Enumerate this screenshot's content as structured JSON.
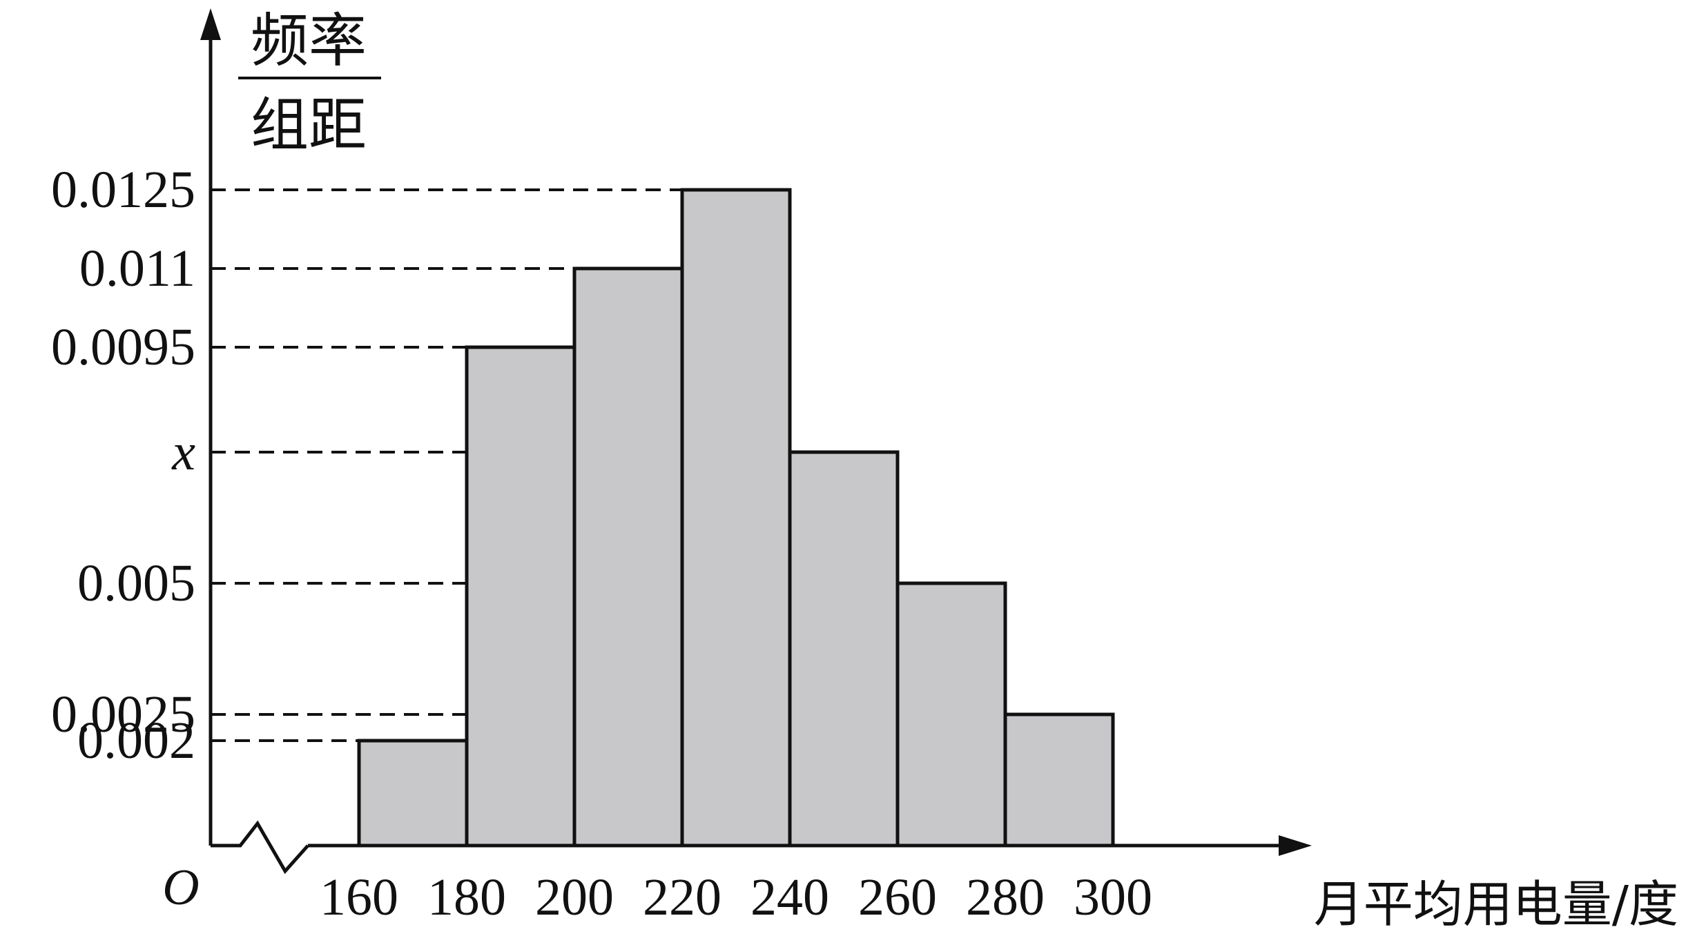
{
  "chart_data": {
    "type": "bar",
    "histogram": true,
    "bins": [
      [
        160,
        180
      ],
      [
        180,
        200
      ],
      [
        200,
        220
      ],
      [
        220,
        240
      ],
      [
        240,
        260
      ],
      [
        260,
        280
      ],
      [
        280,
        300
      ]
    ],
    "x_ticks": [
      "160",
      "180",
      "200",
      "220",
      "240",
      "260",
      "280",
      "300"
    ],
    "values": [
      0.002,
      0.0095,
      0.011,
      0.0125,
      "x",
      0.005,
      0.0025
    ],
    "x_value_estimate": 0.0075,
    "ylabel_numerator": "频率",
    "ylabel_denominator": "组距",
    "xlabel": "月平均用电量/度",
    "origin_label": "O",
    "y_ticks": [
      {
        "value": 0.0125,
        "label": "0.0125"
      },
      {
        "value": 0.011,
        "label": "0.011"
      },
      {
        "value": 0.0095,
        "label": "0.0095"
      },
      {
        "value": 0.0075,
        "label": "x"
      },
      {
        "value": 0.005,
        "label": "0.005"
      },
      {
        "value": 0.0025,
        "label": "0.0025"
      },
      {
        "value": 0.002,
        "label": "0.002"
      }
    ],
    "ylim": [
      0,
      0.0155
    ],
    "axis_break": true,
    "grid": false,
    "bar_color": "#c8c8ca",
    "line_color": "#111111"
  }
}
